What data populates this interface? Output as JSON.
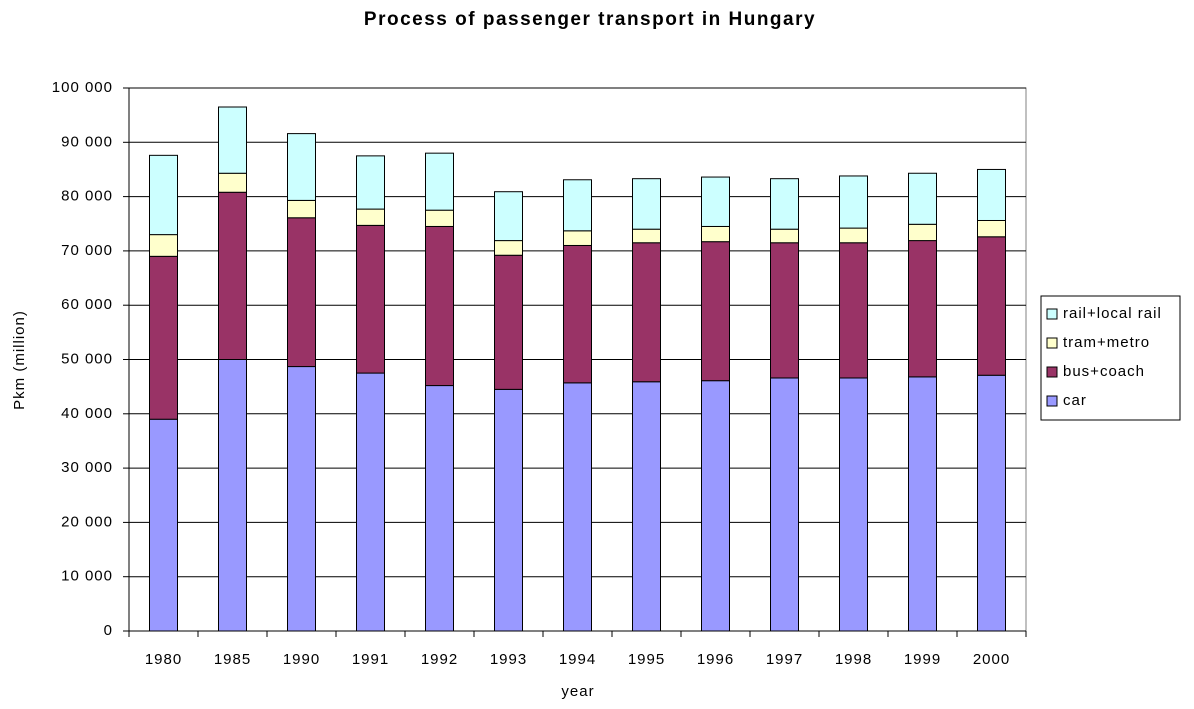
{
  "chart_data": {
    "type": "stacked_bar",
    "title": "Process of passenger transport in Hungary",
    "x_label": "year",
    "y_label": "Pkm (million)",
    "categories": [
      "1980",
      "1985",
      "1990",
      "1991",
      "1992",
      "1993",
      "1994",
      "1995",
      "1996",
      "1997",
      "1998",
      "1999",
      "2000"
    ],
    "series": [
      {
        "name": "car",
        "color": "#9999ff",
        "values": [
          39000,
          50000,
          48700,
          47500,
          45200,
          44500,
          45700,
          45900,
          46100,
          46600,
          46600,
          46800,
          47100
        ]
      },
      {
        "name": "bus+coach",
        "color": "#993366",
        "values": [
          30000,
          30800,
          27400,
          27200,
          29300,
          24700,
          25300,
          25600,
          25600,
          24900,
          24900,
          25100,
          25500
        ]
      },
      {
        "name": "tram+metro",
        "color": "#ffffcc",
        "values": [
          4000,
          3500,
          3200,
          3000,
          3000,
          2700,
          2700,
          2500,
          2800,
          2500,
          2700,
          3000,
          3000
        ]
      },
      {
        "name": "rail+local rail",
        "color": "#ccffff",
        "values": [
          14600,
          12200,
          12300,
          9800,
          10500,
          9000,
          9400,
          9300,
          9100,
          9300,
          9600,
          9400,
          9400
        ]
      }
    ],
    "ylim": [
      0,
      100000
    ],
    "yticks": [
      0,
      {
        "value": 10000,
        "label": "10 000"
      },
      {
        "value": 20000,
        "label": "20 000"
      },
      {
        "value": 30000,
        "label": "30 000"
      },
      {
        "value": 40000,
        "label": "40 000"
      },
      {
        "value": 50000,
        "label": "50 000"
      },
      {
        "value": 60000,
        "label": "60 000"
      },
      {
        "value": 70000,
        "label": "70 000"
      },
      {
        "value": 80000,
        "label": "80 000"
      },
      {
        "value": 90000,
        "label": "90 000"
      },
      {
        "value": 100000,
        "label": "100 000"
      }
    ],
    "grid": true,
    "legend": "right"
  }
}
